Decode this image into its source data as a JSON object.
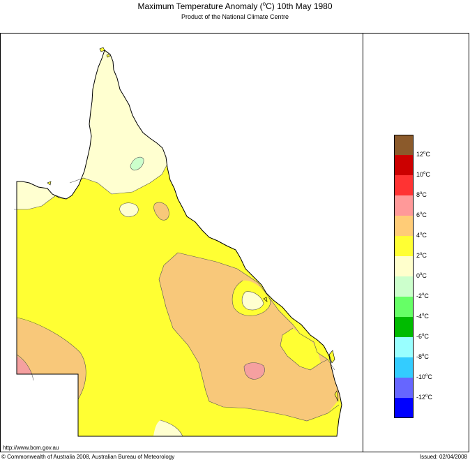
{
  "title": {
    "prefix": "Maximum Temperature Anomaly (",
    "degree": "o",
    "suffix": "C)  10th May 1980"
  },
  "subtitle": "Product of the National Climate Centre",
  "legend": {
    "colors": [
      "#8b5a2b",
      "#cc0000",
      "#ff3333",
      "#ff9999",
      "#ffcc77",
      "#ffff33",
      "#ffffcc",
      "#ccffcc",
      "#66ff66",
      "#00bb00",
      "#99ffff",
      "#33ccff",
      "#6666ff",
      "#0000ff"
    ],
    "labels": [
      {
        "num": "12",
        "unit": "C"
      },
      {
        "num": "10",
        "unit": "C"
      },
      {
        "num": "8",
        "unit": "C"
      },
      {
        "num": "6",
        "unit": "C"
      },
      {
        "num": "4",
        "unit": "C"
      },
      {
        "num": "2",
        "unit": "C"
      },
      {
        "num": "0",
        "unit": "C"
      },
      {
        "num": "-2",
        "unit": "C"
      },
      {
        "num": "-4",
        "unit": "C"
      },
      {
        "num": "-6",
        "unit": "C"
      },
      {
        "num": "-8",
        "unit": "C"
      },
      {
        "num": "-10",
        "unit": "C"
      },
      {
        "num": "-12",
        "unit": "C"
      }
    ]
  },
  "map_colors": {
    "zero_to_two": "#ffffd0",
    "two_to_four": "#ffff33",
    "four_to_six": "#f8c87a",
    "six_to_eight": "#f5a0a0",
    "minus_two_to_zero": "#ccffcc"
  },
  "footer": {
    "url": "http://www.bom.gov.au",
    "copyright": "© Commonwealth of Australia 2008, Australian Bureau of Meteorology",
    "issued": "Issued: 02/04/2008"
  }
}
